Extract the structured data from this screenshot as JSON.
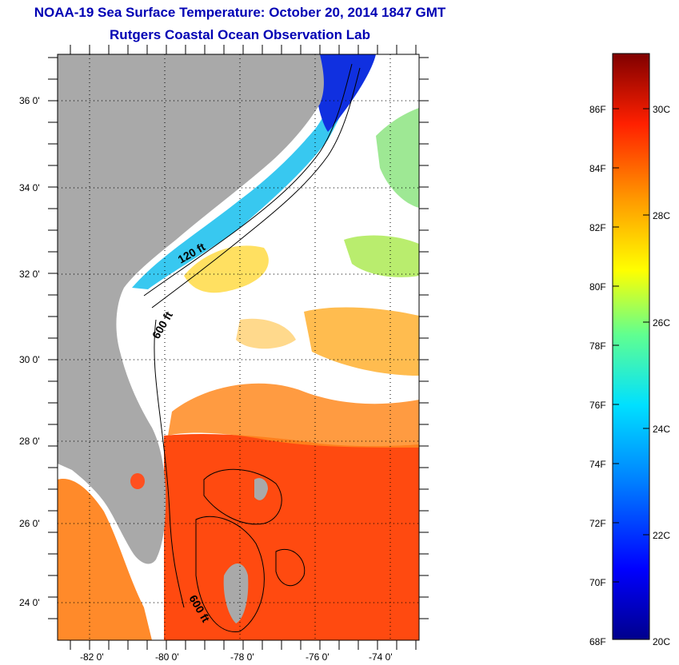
{
  "title": "NOAA-19 Sea Surface Temperature:  October 20, 2014 1847 GMT",
  "subtitle": "Rutgers Coastal Ocean Observation Lab",
  "map": {
    "lat_labels": [
      "36 0'",
      "34 0'",
      "32 0'",
      "30 0'",
      "28 0'",
      "26 0'",
      "24 0'"
    ],
    "lon_labels": [
      "-82 0'",
      "-80 0'",
      "-78 0'",
      "-76 0'",
      "-74 0'"
    ],
    "contour_labels": [
      "120 ft",
      "600 ft",
      "600 ft"
    ],
    "colors": {
      "land": "#a9a9a9",
      "cloud": "#ffffff",
      "ocean_warm": "#ff3a12",
      "ocean_cold": "#0a1aff"
    }
  },
  "colorbar": {
    "fahrenheit_labels": [
      "86F",
      "84F",
      "82F",
      "80F",
      "78F",
      "76F",
      "74F",
      "72F",
      "70F",
      "68F"
    ],
    "celsius_labels": [
      "30C",
      "28C",
      "26C",
      "24C",
      "22C",
      "20C"
    ],
    "range_celsius": [
      20,
      31
    ]
  }
}
